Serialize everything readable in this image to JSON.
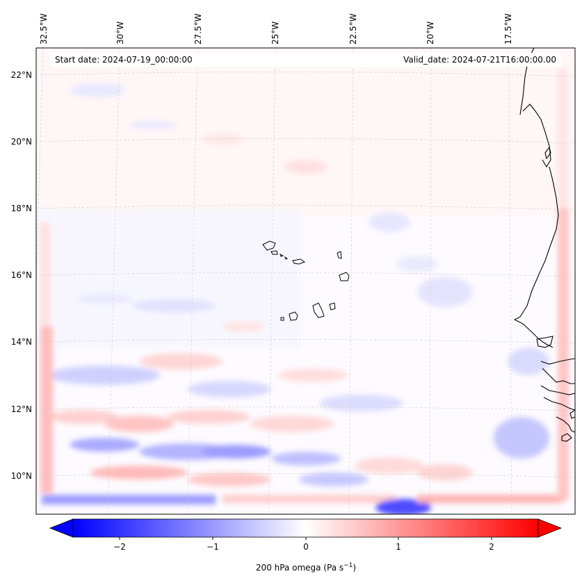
{
  "map": {
    "start_date": "Start date: 2024-07-19_00:00:00",
    "valid_date": "Valid_date: 2024-07-21T16:00:00.00",
    "lon_labels": [
      "32.5°W",
      "30°W",
      "27.5°W",
      "25°W",
      "22.5°W",
      "20°W",
      "17.5°W"
    ],
    "lat_labels": [
      "22°N",
      "20°N",
      "18°N",
      "16°N",
      "14°N",
      "12°N",
      "10°N"
    ],
    "field": "200 hPa omega",
    "colors": {
      "negative": "#0000ff",
      "zero": "#ffffff",
      "positive": "#ff0000",
      "coast": "#000000",
      "grid": "#c8c8c8"
    }
  },
  "colorbar": {
    "label_main": "200 hPa omega (Pa s",
    "label_exp": "−1",
    "label_end": ")",
    "ticks": [
      "−2",
      "−1",
      "0",
      "1",
      "2"
    ],
    "range": [
      -2.7,
      2.7
    ],
    "extend": "both",
    "cmap": "bwr"
  }
}
